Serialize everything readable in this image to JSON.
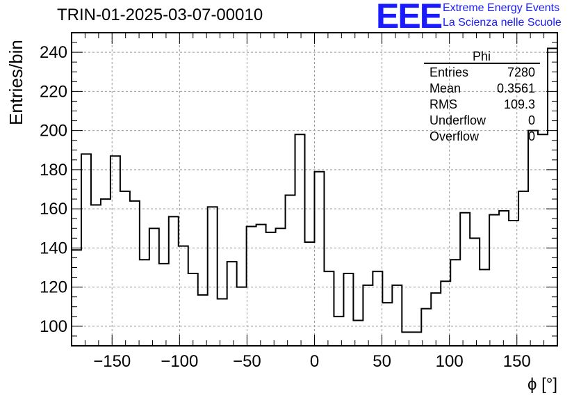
{
  "header": {
    "title": "TRIN-01-2025-03-07-00010",
    "logo_text": "EEE",
    "logo_line1": "Extreme Energy Events",
    "logo_line2": "La Scienza nelle Scuole",
    "logo_color": "#1a1aff"
  },
  "stats": {
    "name": "Phi",
    "rows": [
      {
        "label": "Entries",
        "value": "7280"
      },
      {
        "label": "Mean",
        "value": "0.3561"
      },
      {
        "label": "RMS",
        "value": "109.3"
      },
      {
        "label": "Underflow",
        "value": "0"
      },
      {
        "label": "Overflow",
        "value": "0"
      }
    ]
  },
  "chart_data": {
    "type": "bar",
    "style": "step-histogram",
    "xlabel": "ϕ [°]",
    "ylabel": "Entries/bin",
    "xlim": [
      -180,
      180
    ],
    "ylim": [
      90,
      250
    ],
    "bin_width": 7.2,
    "grid": true,
    "xticks": [
      -150,
      -100,
      -50,
      0,
      50,
      100,
      150
    ],
    "xtick_labels": [
      "−150",
      "−100",
      "−50",
      "0",
      "50",
      "100",
      "150"
    ],
    "yticks": [
      100,
      120,
      140,
      160,
      180,
      200,
      220,
      240
    ],
    "values": [
      139,
      188,
      162,
      165,
      187,
      169,
      164,
      134,
      150,
      132,
      156,
      141,
      127,
      116,
      161,
      114,
      133,
      120,
      151,
      152,
      148,
      150,
      167,
      198,
      143,
      179,
      128,
      105,
      127,
      103,
      121,
      128,
      112,
      121,
      97,
      97,
      109,
      117,
      123,
      134,
      158,
      145,
      129,
      157,
      159,
      154,
      169,
      200,
      198,
      242
    ]
  }
}
